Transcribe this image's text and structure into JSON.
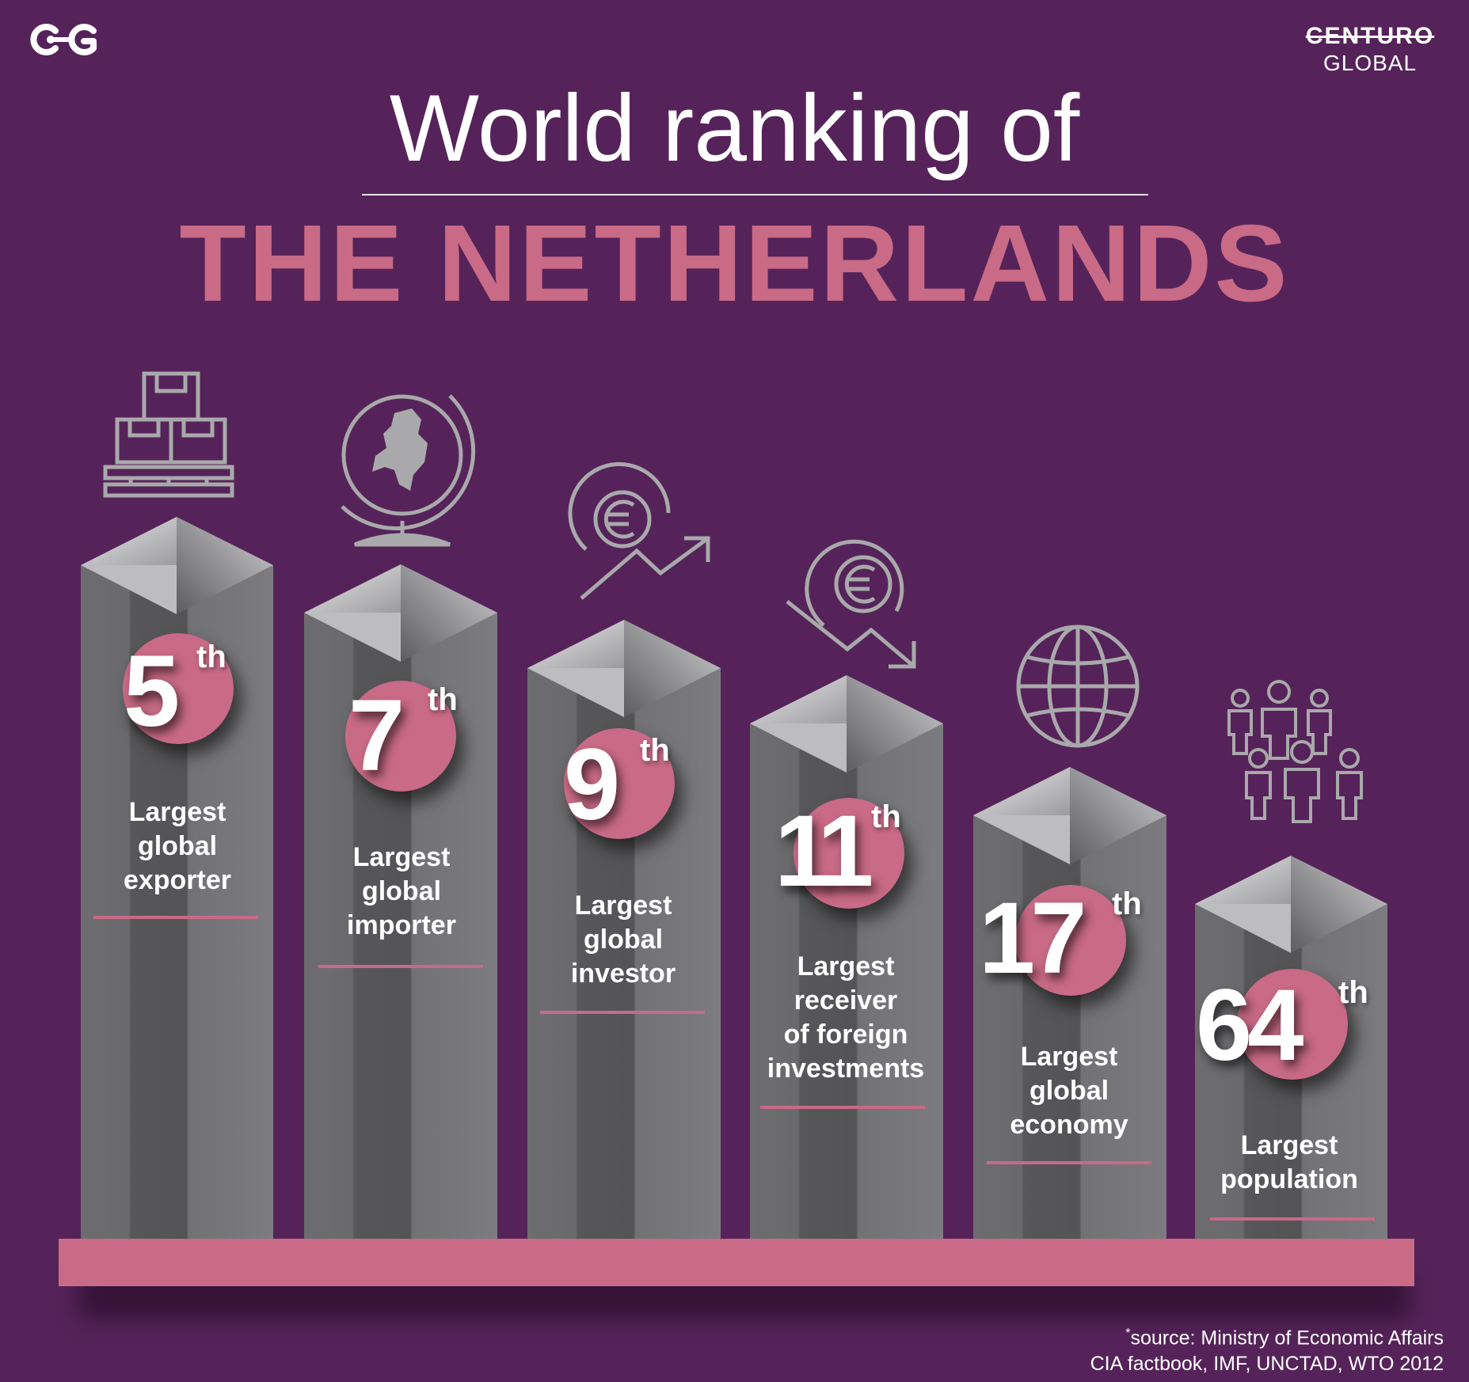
{
  "logos": {
    "left_mark": "CG",
    "right_brand": "CENTURO",
    "right_sub": "GLOBAL"
  },
  "title": {
    "line1": "World ranking of",
    "line2": "THE NETHERLANDS"
  },
  "rankings": [
    {
      "rank": "5",
      "suffix": "th",
      "label_lines": [
        "Largest",
        "global",
        "exporter"
      ],
      "icon": "stacked-boxes-pallet-icon"
    },
    {
      "rank": "7",
      "suffix": "th",
      "label_lines": [
        "Largest",
        "global",
        "importer"
      ],
      "icon": "globe-netherlands-map-icon"
    },
    {
      "rank": "9",
      "suffix": "th",
      "label_lines": [
        "Largest",
        "global",
        "investor"
      ],
      "icon": "euro-growth-arrow-up-icon"
    },
    {
      "rank": "11",
      "suffix": "th",
      "label_lines": [
        "Largest",
        "receiver",
        "of foreign",
        "investments"
      ],
      "icon": "euro-decline-arrow-down-icon"
    },
    {
      "rank": "17",
      "suffix": "th",
      "label_lines": [
        "Largest",
        "global",
        "economy"
      ],
      "icon": "globe-grid-icon"
    },
    {
      "rank": "64",
      "suffix": "th",
      "label_lines": [
        "Largest",
        "population"
      ],
      "icon": "people-group-icon"
    }
  ],
  "source": {
    "mark": "*",
    "line1": "source: Ministry of Economic Affairs",
    "line2": "CIA factbook, IMF, UNCTAD, WTO 2012"
  },
  "colors": {
    "background": "#552359",
    "accent_pink": "#c96a86",
    "pillar_grey": "#6e6e70",
    "icon_grey": "#a9a9ab",
    "text": "#ffffff"
  }
}
